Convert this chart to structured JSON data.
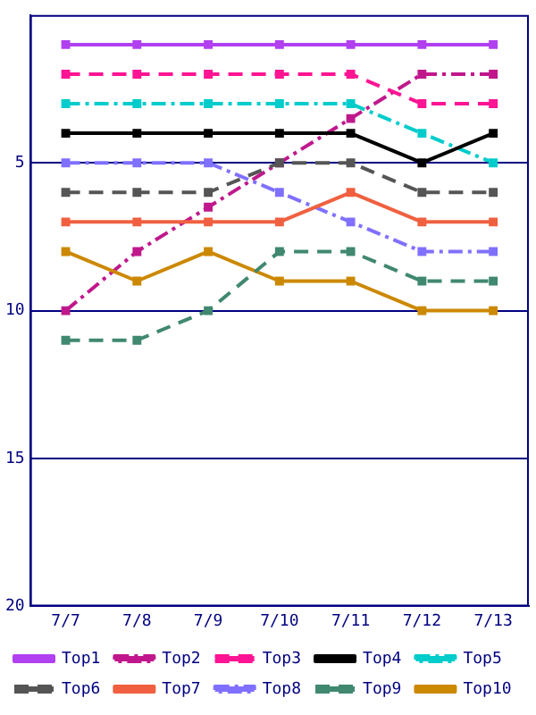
{
  "chart_data": {
    "type": "line",
    "categories": [
      "7/7",
      "7/8",
      "7/9",
      "7/10",
      "7/11",
      "7/12",
      "7/13"
    ],
    "ylim": [
      20,
      0
    ],
    "yticks": [
      5,
      10,
      15,
      20
    ],
    "grid": "y",
    "legend": "bottom",
    "marker": "square",
    "series": [
      {
        "name": "Top1",
        "color": "#b040f0",
        "line_style": "solid",
        "values": [
          1,
          1,
          1,
          1,
          1,
          1,
          1
        ]
      },
      {
        "name": "Top2",
        "color": "#c0188c",
        "line_style": "dashdot",
        "values": [
          10,
          8,
          6.5,
          5,
          3.5,
          2,
          2
        ]
      },
      {
        "name": "Top3",
        "color": "#ff1493",
        "line_style": "dashed",
        "values": [
          2,
          2,
          2,
          2,
          2,
          3,
          3
        ]
      },
      {
        "name": "Top4",
        "color": "#000000",
        "line_style": "solid",
        "values": [
          4,
          4,
          4,
          4,
          4,
          5,
          4
        ]
      },
      {
        "name": "Top5",
        "color": "#00cccc",
        "line_style": "dashdot",
        "values": [
          3,
          3,
          3,
          3,
          3,
          4,
          5
        ]
      },
      {
        "name": "Top6",
        "color": "#555555",
        "line_style": "dashed",
        "values": [
          6,
          6,
          6,
          5,
          5,
          6,
          6
        ]
      },
      {
        "name": "Top7",
        "color": "#f06040",
        "line_style": "solid",
        "values": [
          7,
          7,
          7,
          7,
          6,
          7,
          7
        ]
      },
      {
        "name": "Top8",
        "color": "#8070ff",
        "line_style": "dashdot",
        "values": [
          5,
          5,
          5,
          6,
          7,
          8,
          8
        ]
      },
      {
        "name": "Top9",
        "color": "#408870",
        "line_style": "dashed",
        "values": [
          11,
          11,
          10,
          8,
          8,
          9,
          9
        ]
      },
      {
        "name": "Top10",
        "color": "#cc8800",
        "line_style": "solid",
        "values": [
          8,
          9,
          8,
          9,
          9,
          10,
          10
        ]
      }
    ]
  }
}
